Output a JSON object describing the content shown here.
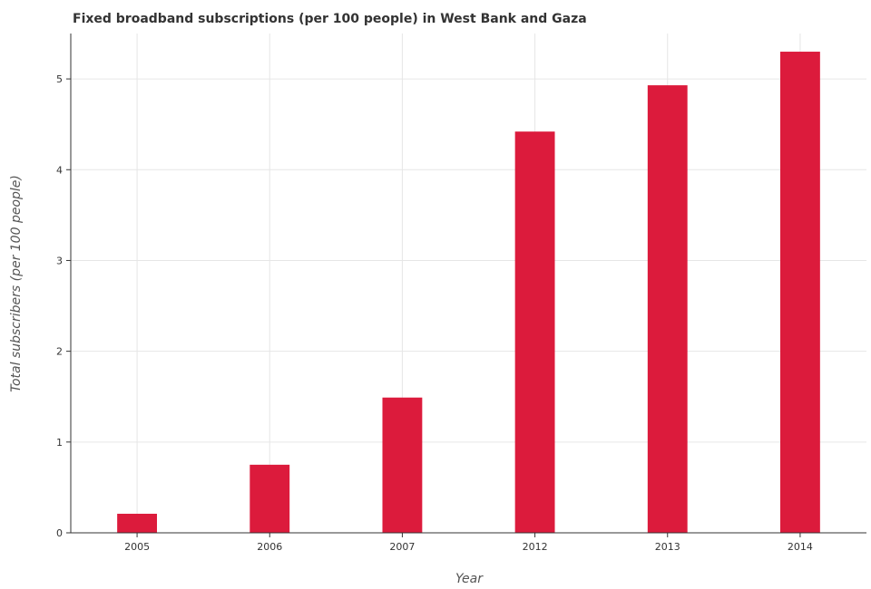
{
  "chart_data": {
    "type": "bar",
    "title": "Fixed broadband subscriptions (per 100 people) in West Bank and Gaza",
    "xlabel": "Year",
    "ylabel": "Total subscribers (per 100 people)",
    "categories": [
      "2005",
      "2006",
      "2007",
      "2012",
      "2013",
      "2014"
    ],
    "values": [
      0.21,
      0.75,
      1.49,
      4.42,
      4.93,
      5.3
    ],
    "ylim": [
      0,
      5.5
    ],
    "yticks": [
      0,
      1,
      2,
      3,
      4,
      5
    ],
    "grid": true,
    "bar_color": "#dc1b3c"
  }
}
